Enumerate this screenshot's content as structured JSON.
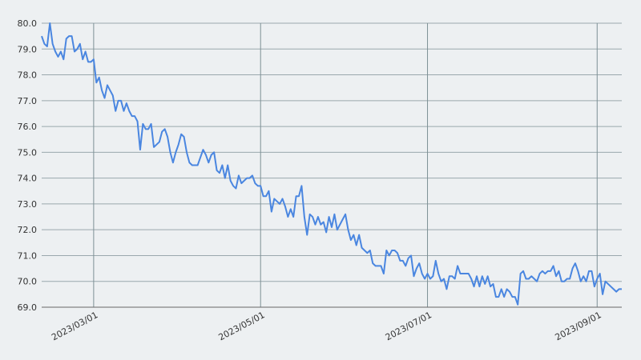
{
  "chart_data": {
    "type": "line",
    "x": [
      "2023-02-10",
      "2023-02-11",
      "2023-02-12",
      "2023-02-13",
      "2023-02-14",
      "2023-02-15",
      "2023-02-16",
      "2023-02-17",
      "2023-02-18",
      "2023-02-19",
      "2023-02-20",
      "2023-02-21",
      "2023-02-22",
      "2023-02-23",
      "2023-02-24",
      "2023-02-25",
      "2023-02-26",
      "2023-02-27",
      "2023-02-28",
      "2023-03-01",
      "2023-03-02",
      "2023-03-03",
      "2023-03-04",
      "2023-03-05",
      "2023-03-06",
      "2023-03-07",
      "2023-03-08",
      "2023-03-09",
      "2023-03-10",
      "2023-03-11",
      "2023-03-12",
      "2023-03-13",
      "2023-03-14",
      "2023-03-15",
      "2023-03-16",
      "2023-03-17",
      "2023-03-18",
      "2023-03-19",
      "2023-03-20",
      "2023-03-21",
      "2023-03-22",
      "2023-03-23",
      "2023-03-24",
      "2023-03-25",
      "2023-03-26",
      "2023-03-27",
      "2023-03-28",
      "2023-03-29",
      "2023-03-30",
      "2023-03-31",
      "2023-04-01",
      "2023-04-02",
      "2023-04-03",
      "2023-04-04",
      "2023-04-05",
      "2023-04-06",
      "2023-04-07",
      "2023-04-08",
      "2023-04-09",
      "2023-04-10",
      "2023-04-11",
      "2023-04-12",
      "2023-04-13",
      "2023-04-14",
      "2023-04-15",
      "2023-04-16",
      "2023-04-17",
      "2023-04-18",
      "2023-04-19",
      "2023-04-20",
      "2023-04-21",
      "2023-04-22",
      "2023-04-23",
      "2023-04-24",
      "2023-04-25",
      "2023-04-26",
      "2023-04-27",
      "2023-04-28",
      "2023-04-29",
      "2023-04-30",
      "2023-05-01",
      "2023-05-02",
      "2023-05-03",
      "2023-05-04",
      "2023-05-05",
      "2023-05-06",
      "2023-05-07",
      "2023-05-08",
      "2023-05-09",
      "2023-05-10",
      "2023-05-11",
      "2023-05-12",
      "2023-05-13",
      "2023-05-14",
      "2023-05-15",
      "2023-05-16",
      "2023-05-17",
      "2023-05-18",
      "2023-05-19",
      "2023-05-20",
      "2023-05-21",
      "2023-05-22",
      "2023-05-23",
      "2023-05-24",
      "2023-05-25",
      "2023-05-26",
      "2023-05-27",
      "2023-05-28",
      "2023-05-29",
      "2023-05-30",
      "2023-05-31",
      "2023-06-01",
      "2023-06-02",
      "2023-06-03",
      "2023-06-04",
      "2023-06-05",
      "2023-06-06",
      "2023-06-07",
      "2023-06-08",
      "2023-06-09",
      "2023-06-10",
      "2023-06-11",
      "2023-06-12",
      "2023-06-13",
      "2023-06-14",
      "2023-06-15",
      "2023-06-16",
      "2023-06-17",
      "2023-06-18",
      "2023-06-19",
      "2023-06-20",
      "2023-06-21",
      "2023-06-22",
      "2023-06-23",
      "2023-06-24",
      "2023-06-25",
      "2023-06-26",
      "2023-06-27",
      "2023-06-28",
      "2023-06-29",
      "2023-06-30",
      "2023-07-01",
      "2023-07-02",
      "2023-07-03",
      "2023-07-04",
      "2023-07-05",
      "2023-07-06",
      "2023-07-07",
      "2023-07-08",
      "2023-07-09",
      "2023-07-10",
      "2023-07-11",
      "2023-07-12",
      "2023-07-13",
      "2023-07-14",
      "2023-07-15",
      "2023-07-16",
      "2023-07-17",
      "2023-07-18",
      "2023-07-19",
      "2023-07-20",
      "2023-07-21",
      "2023-07-22",
      "2023-07-23",
      "2023-07-24",
      "2023-07-25",
      "2023-07-26",
      "2023-07-27",
      "2023-07-28",
      "2023-07-29",
      "2023-07-30",
      "2023-07-31",
      "2023-08-01",
      "2023-08-02",
      "2023-08-03",
      "2023-08-04",
      "2023-08-05",
      "2023-08-06",
      "2023-08-07",
      "2023-08-08",
      "2023-08-09",
      "2023-08-10",
      "2023-08-11",
      "2023-08-12",
      "2023-08-13",
      "2023-08-14",
      "2023-08-15",
      "2023-08-16",
      "2023-08-17",
      "2023-08-18",
      "2023-08-19",
      "2023-08-20",
      "2023-08-21",
      "2023-08-22",
      "2023-08-23",
      "2023-08-24",
      "2023-08-25",
      "2023-08-26",
      "2023-08-27",
      "2023-08-28",
      "2023-08-29",
      "2023-08-30",
      "2023-08-31",
      "2023-09-01",
      "2023-09-02",
      "2023-09-03",
      "2023-09-04",
      "2023-09-05",
      "2023-09-06",
      "2023-09-07",
      "2023-09-08",
      "2023-09-09",
      "2023-09-10"
    ],
    "series": [
      {
        "color": "#4a86e0",
        "values": [
          79.5,
          79.2,
          79.1,
          80.0,
          79.2,
          78.9,
          78.7,
          78.9,
          78.6,
          79.4,
          79.5,
          79.5,
          78.9,
          79.0,
          79.2,
          78.6,
          78.9,
          78.5,
          78.5,
          78.6,
          77.7,
          77.9,
          77.4,
          77.1,
          77.6,
          77.4,
          77.2,
          76.6,
          77.0,
          77.0,
          76.6,
          76.9,
          76.6,
          76.4,
          76.4,
          76.2,
          75.1,
          76.1,
          75.9,
          75.9,
          76.1,
          75.2,
          75.3,
          75.4,
          75.8,
          75.9,
          75.6,
          75.0,
          74.6,
          75.0,
          75.3,
          75.7,
          75.6,
          75.0,
          74.6,
          74.5,
          74.5,
          74.5,
          74.8,
          75.1,
          74.9,
          74.6,
          74.9,
          75.0,
          74.3,
          74.2,
          74.5,
          74.0,
          74.5,
          73.9,
          73.7,
          73.6,
          74.1,
          73.8,
          73.9,
          74.0,
          74.0,
          74.1,
          73.8,
          73.7,
          73.7,
          73.3,
          73.3,
          73.5,
          72.7,
          73.2,
          73.1,
          73.0,
          73.2,
          72.9,
          72.5,
          72.8,
          72.5,
          73.3,
          73.3,
          73.7,
          72.5,
          71.8,
          72.6,
          72.5,
          72.2,
          72.5,
          72.2,
          72.3,
          71.9,
          72.5,
          72.1,
          72.6,
          72.0,
          72.2,
          72.4,
          72.6,
          72.0,
          71.6,
          71.8,
          71.4,
          71.8,
          71.3,
          71.2,
          71.1,
          71.2,
          70.7,
          70.6,
          70.6,
          70.6,
          70.3,
          71.2,
          71.0,
          71.2,
          71.2,
          71.1,
          70.8,
          70.8,
          70.6,
          70.9,
          71.0,
          70.2,
          70.5,
          70.7,
          70.3,
          70.1,
          70.3,
          70.1,
          70.2,
          70.8,
          70.3,
          70.0,
          70.1,
          69.7,
          70.2,
          70.2,
          70.1,
          70.6,
          70.3,
          70.3,
          70.3,
          70.3,
          70.1,
          69.8,
          70.2,
          69.8,
          70.2,
          69.9,
          70.2,
          69.8,
          69.9,
          69.4,
          69.4,
          69.7,
          69.4,
          69.7,
          69.6,
          69.4,
          69.4,
          69.1,
          70.3,
          70.4,
          70.1,
          70.1,
          70.2,
          70.1,
          70.0,
          70.3,
          70.4,
          70.3,
          70.4,
          70.4,
          70.6,
          70.2,
          70.4,
          70.0,
          70.0,
          70.1,
          70.1,
          70.5,
          70.7,
          70.4,
          70.0,
          70.2,
          70.0,
          70.4,
          70.4,
          69.8,
          70.1,
          70.3,
          69.5,
          70.0,
          69.9,
          69.8,
          69.7,
          69.6,
          69.7,
          69.7
        ]
      }
    ],
    "xlim": [
      "2023-02-10",
      "2023-09-10"
    ],
    "xticks": [
      {
        "value": "2023-03-01",
        "label": "2023/03/01"
      },
      {
        "value": "2023-05-01",
        "label": "2023/05/01"
      },
      {
        "value": "2023-07-01",
        "label": "2023/07/01"
      },
      {
        "value": "2023-09-01",
        "label": "2023/09/01"
      }
    ],
    "ylim": [
      69,
      80
    ],
    "yticks": [
      {
        "value": 69,
        "label": "69.0"
      },
      {
        "value": 70,
        "label": "70.0"
      },
      {
        "value": 71,
        "label": "71.0"
      },
      {
        "value": 72,
        "label": "72.0"
      },
      {
        "value": 73,
        "label": "73.0"
      },
      {
        "value": 74,
        "label": "74.0"
      },
      {
        "value": 75,
        "label": "75.0"
      },
      {
        "value": 76,
        "label": "76.0"
      },
      {
        "value": 77,
        "label": "77.0"
      },
      {
        "value": 78,
        "label": "78.0"
      },
      {
        "value": 79,
        "label": "79.0"
      },
      {
        "value": 80,
        "label": "80.0"
      }
    ],
    "grid": true
  }
}
